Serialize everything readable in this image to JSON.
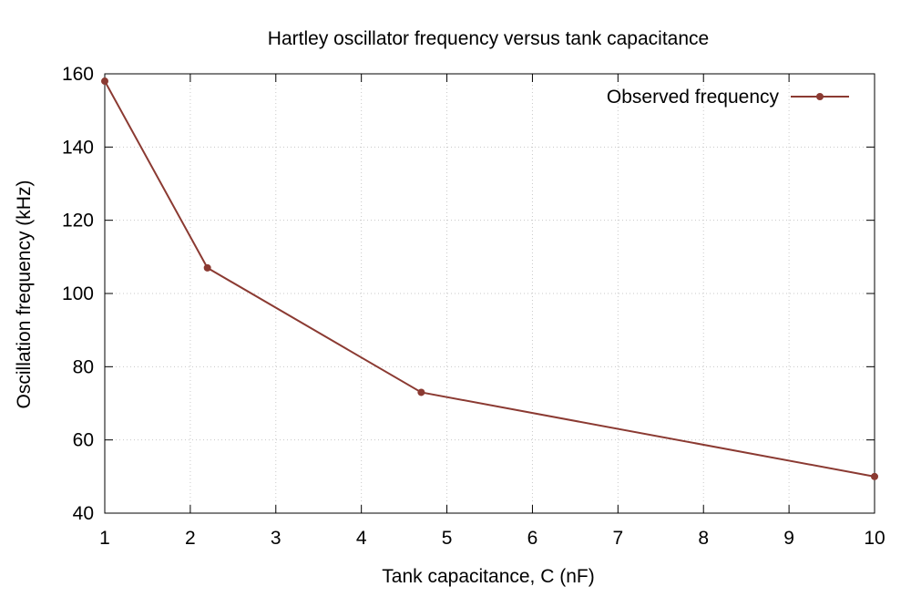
{
  "chart_data": {
    "type": "line",
    "title": "Hartley oscillator frequency versus tank capacitance",
    "xlabel": "Tank capacitance, C (nF)",
    "ylabel": "Oscillation frequency (kHz)",
    "xlim": [
      1,
      10
    ],
    "ylim": [
      40,
      160
    ],
    "x_ticks": [
      "1",
      "2",
      "3",
      "4",
      "5",
      "6",
      "7",
      "8",
      "9",
      "10"
    ],
    "y_ticks": [
      "40",
      "60",
      "80",
      "100",
      "120",
      "140",
      "160"
    ],
    "grid": true,
    "legend_position": "top-right",
    "series": [
      {
        "name": "Observed frequency",
        "color": "#8b3a32",
        "x": [
          1,
          2.2,
          4.7,
          10
        ],
        "y": [
          158,
          107,
          73,
          50
        ]
      }
    ]
  }
}
